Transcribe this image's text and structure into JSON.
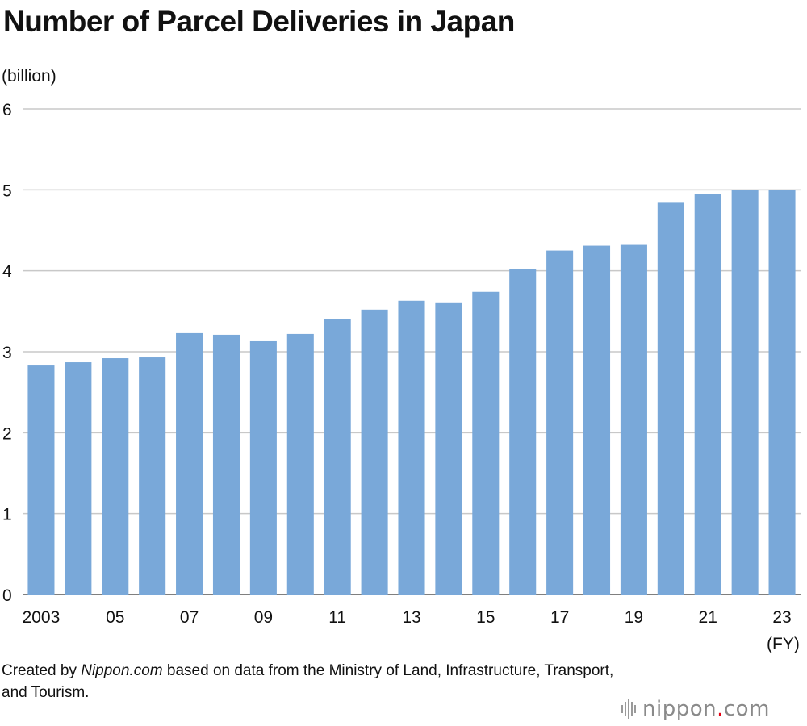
{
  "title": "Number of Parcel Deliveries in Japan",
  "unit_label": "(billion)",
  "fy_label": "(FY)",
  "credit": {
    "prefix": "Created by ",
    "site": "Nippon.com",
    "suffix": " based on data from the Ministry of Land, Infrastructure, Transport, and Tourism."
  },
  "logo": {
    "name": "nippon",
    "dot": ".",
    "tld": "com"
  },
  "colors": {
    "bar": "#79a8d9",
    "grid": "#c8c8c8"
  },
  "chart_data": {
    "type": "bar",
    "title": "Number of Parcel Deliveries in Japan",
    "ylabel": "(billion)",
    "xlabel": "(FY)",
    "ylim": [
      0,
      6
    ],
    "yticks": [
      0,
      1,
      2,
      3,
      4,
      5,
      6
    ],
    "grid": true,
    "categories": [
      "2003",
      "2004",
      "2005",
      "2006",
      "2007",
      "2008",
      "2009",
      "2010",
      "2011",
      "2012",
      "2013",
      "2014",
      "2015",
      "2016",
      "2017",
      "2018",
      "2019",
      "2020",
      "2021",
      "2022",
      "2023"
    ],
    "tick_labels": [
      "2003",
      "",
      "05",
      "",
      "07",
      "",
      "09",
      "",
      "11",
      "",
      "13",
      "",
      "15",
      "",
      "17",
      "",
      "19",
      "",
      "21",
      "",
      "23"
    ],
    "values": [
      2.83,
      2.87,
      2.92,
      2.93,
      3.23,
      3.21,
      3.13,
      3.22,
      3.4,
      3.52,
      3.63,
      3.61,
      3.74,
      4.02,
      4.25,
      4.31,
      4.32,
      4.84,
      4.95,
      5.0,
      5.0
    ]
  }
}
